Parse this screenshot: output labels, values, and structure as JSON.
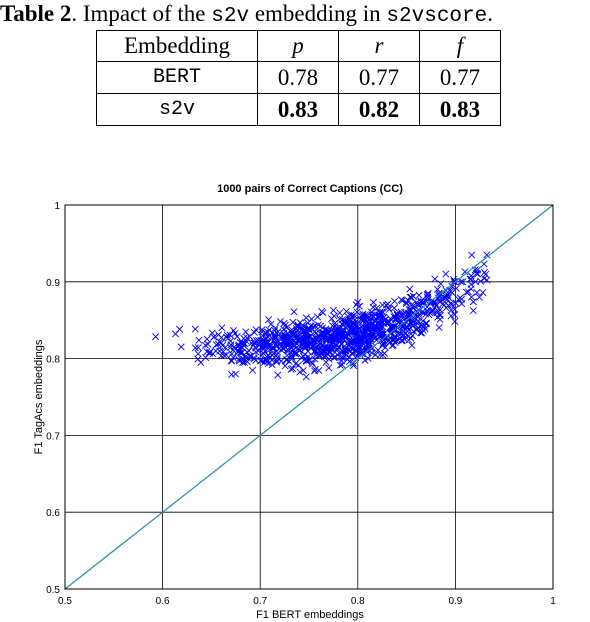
{
  "caption": {
    "label": "Table 2",
    "text_before": ". Impact of the ",
    "code_1": "s2v",
    "text_middle": " embedding in ",
    "code_2": "s2vscore",
    "text_after": "."
  },
  "table": {
    "headers": [
      "Embedding",
      "p",
      "r",
      "f"
    ],
    "rows": [
      {
        "embedding": "BERT",
        "p": "0.78",
        "r": "0.77",
        "f": "0.77"
      },
      {
        "embedding": "s2v",
        "p": "0.83",
        "r": "0.82",
        "f": "0.83"
      }
    ]
  },
  "chart_data": {
    "type": "scatter",
    "title": "1000 pairs of Correct Captions (CC)",
    "xlabel": "F1 BERT embeddings",
    "ylabel": "F1 TagAcs embeddings",
    "xlim": [
      0.5,
      1
    ],
    "ylim": [
      0.5,
      1
    ],
    "xticks": [
      "0.5",
      "0.6",
      "0.7",
      "0.8",
      "0.9",
      "1"
    ],
    "yticks": [
      "0.5",
      "0.6",
      "0.7",
      "0.8",
      "0.9",
      "1"
    ],
    "grid": true,
    "marker": "x",
    "point_color": "#0000ff",
    "diagonal_color": "#1f8fa8",
    "n_points": 1000,
    "trend": [
      {
        "x": 0.58,
        "y": 0.81
      },
      {
        "x": 0.65,
        "y": 0.815
      },
      {
        "x": 0.7,
        "y": 0.815
      },
      {
        "x": 0.75,
        "y": 0.82
      },
      {
        "x": 0.8,
        "y": 0.83
      },
      {
        "x": 0.85,
        "y": 0.85
      },
      {
        "x": 0.88,
        "y": 0.87
      },
      {
        "x": 0.91,
        "y": 0.895
      },
      {
        "x": 0.93,
        "y": 0.91
      }
    ]
  }
}
